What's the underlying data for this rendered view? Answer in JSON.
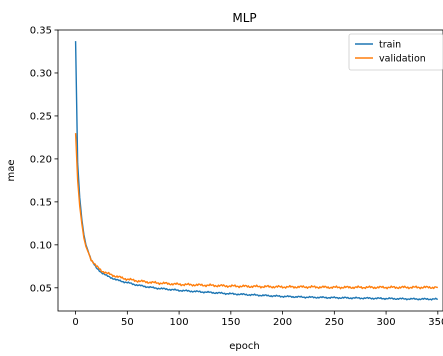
{
  "chart_data": {
    "type": "line",
    "title": "MLP",
    "xlabel": "epoch",
    "ylabel": "mae",
    "xlim": [
      -17,
      355
    ],
    "ylim": [
      0.023,
      0.35
    ],
    "xticks": [
      0,
      50,
      100,
      150,
      200,
      250,
      300,
      350
    ],
    "xtick_labels": [
      "0",
      "50",
      "100",
      "150",
      "200",
      "250",
      "300",
      "350"
    ],
    "yticks": [
      0.05,
      0.1,
      0.15,
      0.2,
      0.25,
      0.3,
      0.35
    ],
    "ytick_labels": [
      "0.05",
      "0.10",
      "0.15",
      "0.20",
      "0.25",
      "0.30",
      "0.35"
    ],
    "grid": false,
    "legend": {
      "placement": "top-right"
    },
    "series": [
      {
        "name": "train",
        "color": "#1f77b4",
        "x": [
          0,
          2,
          4,
          6,
          8,
          10,
          15,
          20,
          25,
          30,
          40,
          50,
          60,
          75,
          100,
          125,
          150,
          175,
          200,
          225,
          250,
          275,
          300,
          325,
          350
        ],
        "y": [
          0.337,
          0.195,
          0.155,
          0.13,
          0.112,
          0.1,
          0.083,
          0.073,
          0.068,
          0.064,
          0.059,
          0.056,
          0.053,
          0.05,
          0.047,
          0.045,
          0.043,
          0.0415,
          0.04,
          0.039,
          0.0385,
          0.038,
          0.0375,
          0.037,
          0.0368
        ]
      },
      {
        "name": "validation",
        "color": "#ff7f0e",
        "x": [
          0,
          2,
          4,
          6,
          8,
          10,
          15,
          20,
          25,
          30,
          40,
          50,
          60,
          75,
          100,
          125,
          150,
          175,
          200,
          225,
          250,
          275,
          300,
          325,
          350
        ],
        "y": [
          0.23,
          0.175,
          0.145,
          0.125,
          0.108,
          0.098,
          0.083,
          0.075,
          0.07,
          0.067,
          0.063,
          0.06,
          0.058,
          0.056,
          0.054,
          0.053,
          0.052,
          0.0515,
          0.051,
          0.051,
          0.0505,
          0.0505,
          0.0505,
          0.0505,
          0.0505
        ]
      }
    ]
  }
}
